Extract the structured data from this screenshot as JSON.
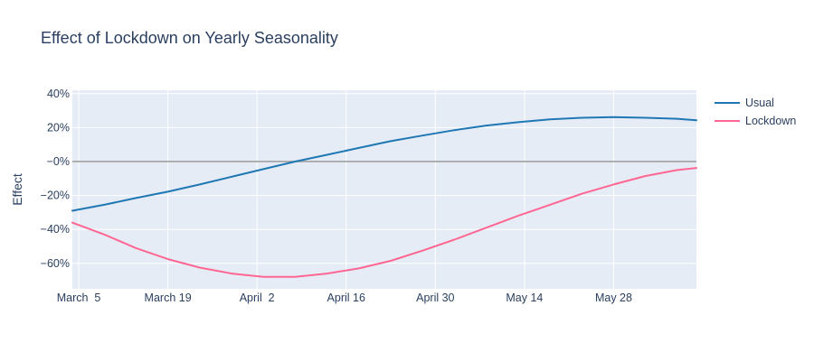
{
  "chart_data": {
    "type": "line",
    "title": "Effect of Lockdown on Yearly Seasonality",
    "xlabel": "",
    "ylabel": "Effect",
    "x_unit": "date",
    "x_range": [
      "2020-03-04",
      "2020-06-10"
    ],
    "ylim": [
      -0.75,
      0.42
    ],
    "y_ticks": [
      -0.6,
      -0.4,
      -0.2,
      0,
      0.2,
      0.4
    ],
    "y_tick_labels": [
      "−60%",
      "−40%",
      "−20%",
      "−0%",
      "20%",
      "40%"
    ],
    "x_ticks": [
      "2020-03-05",
      "2020-03-19",
      "2020-04-02",
      "2020-04-16",
      "2020-04-30",
      "2020-05-14",
      "2020-05-28"
    ],
    "x_tick_labels": [
      "March  5",
      "March 19",
      "April  2",
      "April 16",
      "April 30",
      "May 14",
      "May 28"
    ],
    "grid": true,
    "zero_line": true,
    "legend": "top-right",
    "series": [
      {
        "name": "Usual",
        "color": "#1f77b4",
        "points": [
          [
            "2020-03-04",
            -0.29
          ],
          [
            "2020-03-09",
            -0.255
          ],
          [
            "2020-03-14",
            -0.215
          ],
          [
            "2020-03-19",
            -0.178
          ],
          [
            "2020-03-24",
            -0.135
          ],
          [
            "2020-03-29",
            -0.09
          ],
          [
            "2020-04-03",
            -0.045
          ],
          [
            "2020-04-08",
            0.0
          ],
          [
            "2020-04-13",
            0.04
          ],
          [
            "2020-04-18",
            0.08
          ],
          [
            "2020-04-23",
            0.12
          ],
          [
            "2020-04-28",
            0.153
          ],
          [
            "2020-05-03",
            0.185
          ],
          [
            "2020-05-08",
            0.212
          ],
          [
            "2020-05-13",
            0.232
          ],
          [
            "2020-05-18",
            0.248
          ],
          [
            "2020-05-23",
            0.258
          ],
          [
            "2020-05-28",
            0.262
          ],
          [
            "2020-06-02",
            0.258
          ],
          [
            "2020-06-07",
            0.252
          ],
          [
            "2020-06-10",
            0.243
          ]
        ]
      },
      {
        "name": "Lockdown",
        "color": "#ff6692",
        "points": [
          [
            "2020-03-04",
            -0.36
          ],
          [
            "2020-03-09",
            -0.43
          ],
          [
            "2020-03-14",
            -0.51
          ],
          [
            "2020-03-19",
            -0.575
          ],
          [
            "2020-03-24",
            -0.625
          ],
          [
            "2020-03-29",
            -0.66
          ],
          [
            "2020-04-03",
            -0.68
          ],
          [
            "2020-04-08",
            -0.68
          ],
          [
            "2020-04-13",
            -0.66
          ],
          [
            "2020-04-18",
            -0.63
          ],
          [
            "2020-04-23",
            -0.585
          ],
          [
            "2020-04-28",
            -0.525
          ],
          [
            "2020-05-03",
            -0.46
          ],
          [
            "2020-05-08",
            -0.39
          ],
          [
            "2020-05-13",
            -0.32
          ],
          [
            "2020-05-18",
            -0.255
          ],
          [
            "2020-05-23",
            -0.19
          ],
          [
            "2020-05-28",
            -0.135
          ],
          [
            "2020-06-02",
            -0.085
          ],
          [
            "2020-06-07",
            -0.05
          ],
          [
            "2020-06-10",
            -0.038
          ]
        ]
      }
    ]
  }
}
